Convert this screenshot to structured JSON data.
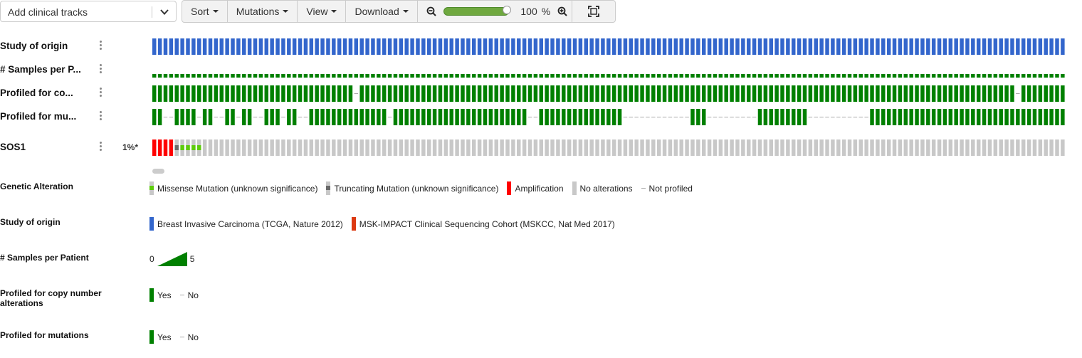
{
  "toolbar": {
    "clinical_tracks_placeholder": "Add clinical tracks",
    "sort_label": "Sort",
    "mutations_label": "Mutations",
    "view_label": "View",
    "download_label": "Download",
    "zoom_value": "100",
    "zoom_unit": "%",
    "zoom_level": 1.0
  },
  "tracks": {
    "study_of_origin": "Study of origin",
    "samples_per_patient": "# Samples per P...",
    "profiled_cna": "Profiled for co...",
    "profiled_mut": "Profiled for mu...",
    "gene": "SOS1",
    "gene_pct": "1%*"
  },
  "colors": {
    "breast": "#3366cc",
    "msk": "#dc3912",
    "profiled": "#008000",
    "amplification": "#ff0000",
    "missense": "#5dcc0b",
    "truncating": "#696969",
    "no_alteration": "#c8c8c8",
    "not_profiled": "#aaaaaa"
  },
  "oncoprint": {
    "num_samples": 163,
    "samples_per_patient": 1,
    "not_profiled_cna": [
      36,
      154
    ],
    "not_profiled_mut": [
      2,
      3,
      8,
      11,
      12,
      15,
      18,
      19,
      23,
      26,
      27,
      42,
      67,
      68,
      84,
      85,
      86,
      87,
      88,
      89,
      90,
      91,
      92,
      93,
      94,
      95,
      99,
      100,
      101,
      102,
      103,
      104,
      105,
      106,
      107,
      117,
      118,
      119,
      120,
      121,
      122,
      123,
      124,
      125,
      126,
      127
    ],
    "amplification": [
      0,
      1,
      2,
      3
    ],
    "missense": [
      5,
      6,
      7,
      8
    ],
    "truncating": [
      4
    ]
  },
  "legend": {
    "genetic_alteration": {
      "title": "Genetic Alteration",
      "items": [
        "Missense Mutation (unknown significance)",
        "Truncating Mutation (unknown significance)",
        "Amplification",
        "No alterations",
        "Not profiled"
      ]
    },
    "study_of_origin": {
      "title": "Study of origin",
      "items": [
        "Breast Invasive Carcinoma (TCGA, Nature 2012)",
        "MSK-IMPACT Clinical Sequencing Cohort (MSKCC, Nat Med 2017)"
      ]
    },
    "samples_per_patient": {
      "title": "# Samples per Patient",
      "min": "0",
      "max": "5"
    },
    "profiled_cna": {
      "title": "Profiled for copy number alterations",
      "yes": "Yes",
      "no": "No"
    },
    "profiled_mut": {
      "title": "Profiled for mutations",
      "yes": "Yes",
      "no": "No"
    }
  },
  "icons": [
    "chevron-down-icon",
    "zoom-out-icon",
    "zoom-in-icon",
    "fit-screen-icon",
    "track-menu-icon"
  ]
}
